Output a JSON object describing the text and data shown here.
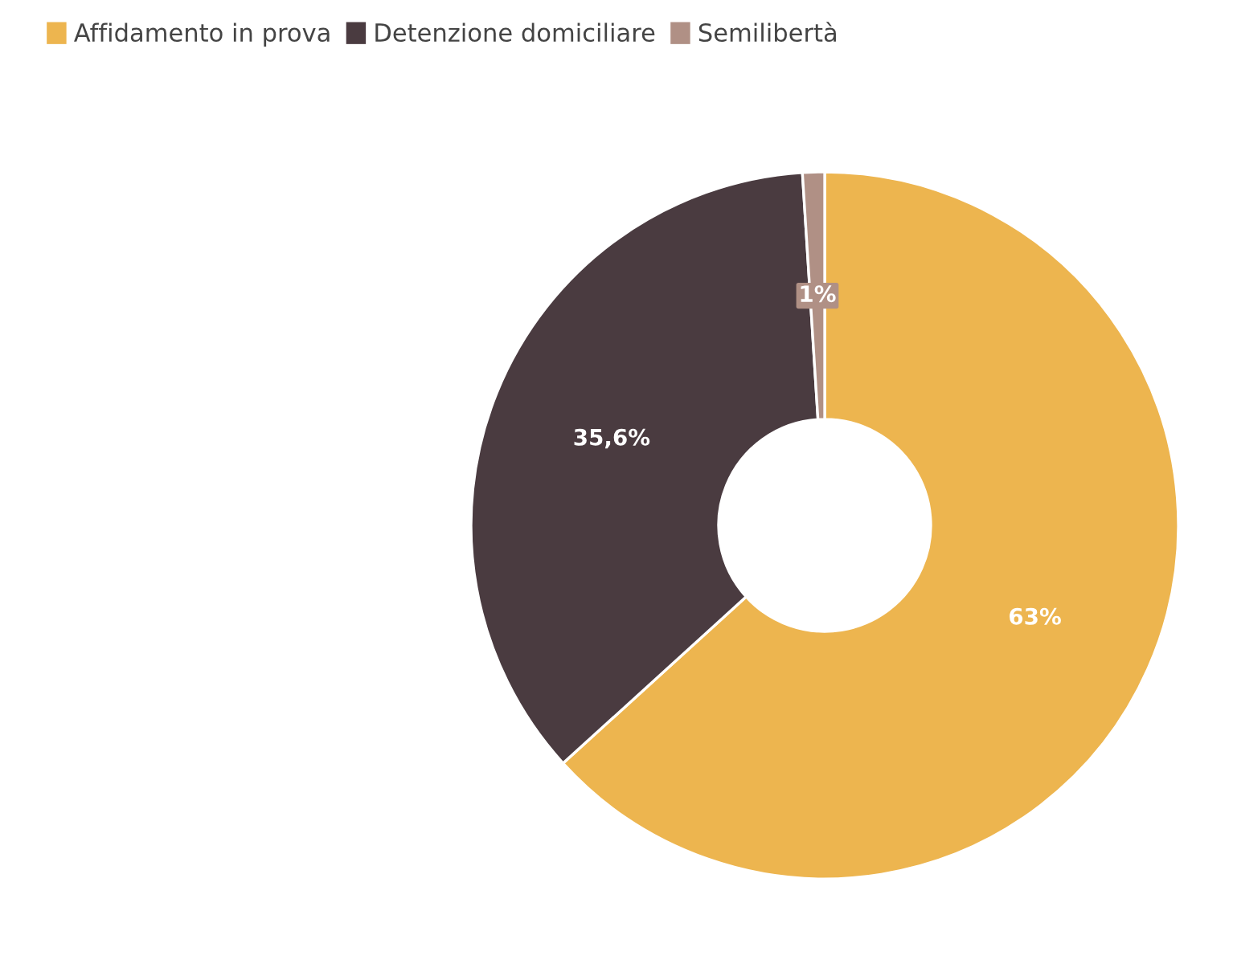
{
  "chart_data": {
    "type": "donut",
    "categories": [
      "Affidamento in prova",
      "Detenzione domiciliare",
      "Semilibertà"
    ],
    "values": [
      63,
      35.6,
      1
    ],
    "colors": [
      "#edb54f",
      "#4a3b40",
      "#b09085"
    ],
    "value_labels": [
      "63%",
      "35,6%",
      "1%"
    ],
    "legend": "top left"
  }
}
